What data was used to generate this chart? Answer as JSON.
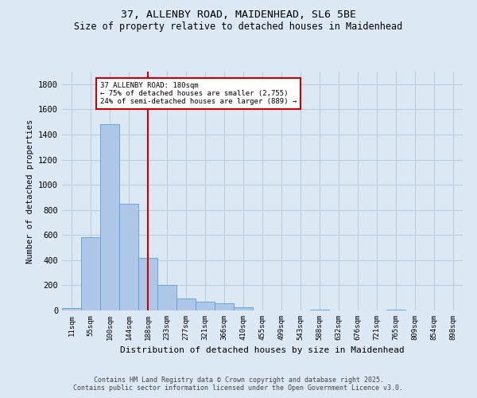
{
  "title_line1": "37, ALLENBY ROAD, MAIDENHEAD, SL6 5BE",
  "title_line2": "Size of property relative to detached houses in Maidenhead",
  "xlabel": "Distribution of detached houses by size in Maidenhead",
  "ylabel": "Number of detached properties",
  "categories": [
    "11sqm",
    "55sqm",
    "100sqm",
    "144sqm",
    "188sqm",
    "233sqm",
    "277sqm",
    "321sqm",
    "366sqm",
    "410sqm",
    "455sqm",
    "499sqm",
    "543sqm",
    "588sqm",
    "632sqm",
    "676sqm",
    "721sqm",
    "765sqm",
    "809sqm",
    "854sqm",
    "898sqm"
  ],
  "values": [
    20,
    580,
    1480,
    850,
    420,
    205,
    95,
    70,
    60,
    25,
    0,
    0,
    0,
    5,
    0,
    0,
    0,
    5,
    0,
    0,
    0
  ],
  "bar_color": "#aec6e8",
  "bar_edge_color": "#5a9fd4",
  "vline_x_index": 4,
  "vline_color": "#cc0000",
  "annotation_title": "37 ALLENBY ROAD: 180sqm",
  "annotation_line1": "← 75% of detached houses are smaller (2,755)",
  "annotation_line2": "24% of semi-detached houses are larger (889) →",
  "annotation_box_color": "#cc0000",
  "ylim": [
    0,
    1900
  ],
  "yticks": [
    0,
    200,
    400,
    600,
    800,
    1000,
    1200,
    1400,
    1600,
    1800
  ],
  "grid_color": "#b8cfe0",
  "bg_color": "#dce9f5",
  "footer_line1": "Contains HM Land Registry data © Crown copyright and database right 2025.",
  "footer_line2": "Contains public sector information licensed under the Open Government Licence v3.0."
}
